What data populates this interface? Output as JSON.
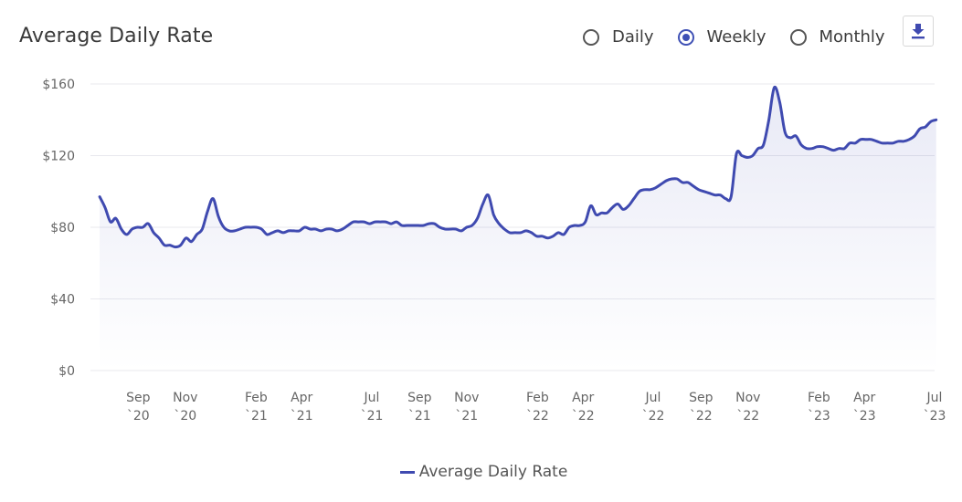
{
  "header": {
    "title": "Average Daily Rate",
    "options": [
      {
        "label": "Daily",
        "selected": false
      },
      {
        "label": "Weekly",
        "selected": true
      },
      {
        "label": "Monthly",
        "selected": false
      }
    ],
    "download_icon": "download-icon"
  },
  "colors": {
    "line": "#3f4ab0",
    "grid": "#e8e8ee",
    "axis_text": "#666666"
  },
  "chart_data": {
    "type": "area",
    "title": "Average Daily Rate",
    "ylabel": "",
    "xlabel": "",
    "ylim": [
      0,
      160
    ],
    "yticks": [
      "$0",
      "$40",
      "$80",
      "$120",
      "$160"
    ],
    "yvalues": [
      0,
      40,
      80,
      120,
      160
    ],
    "x_start": "2020-07",
    "x_end": "2023-07",
    "xticks": [
      {
        "date": "2020-09",
        "line1": "Sep",
        "line2": "`20"
      },
      {
        "date": "2020-11",
        "line1": "Nov",
        "line2": "`20"
      },
      {
        "date": "2021-02",
        "line1": "Feb",
        "line2": "`21"
      },
      {
        "date": "2021-04",
        "line1": "Apr",
        "line2": "`21"
      },
      {
        "date": "2021-07",
        "line1": "Jul",
        "line2": "`21"
      },
      {
        "date": "2021-09",
        "line1": "Sep",
        "line2": "`21"
      },
      {
        "date": "2021-11",
        "line1": "Nov",
        "line2": "`21"
      },
      {
        "date": "2022-02",
        "line1": "Feb",
        "line2": "`22"
      },
      {
        "date": "2022-04",
        "line1": "Apr",
        "line2": "`22"
      },
      {
        "date": "2022-07",
        "line1": "Jul",
        "line2": "`22"
      },
      {
        "date": "2022-09",
        "line1": "Sep",
        "line2": "`22"
      },
      {
        "date": "2022-11",
        "line1": "Nov",
        "line2": "`22"
      },
      {
        "date": "2023-02",
        "line1": "Feb",
        "line2": "`23"
      },
      {
        "date": "2023-04",
        "line1": "Apr",
        "line2": "`23"
      },
      {
        "date": "2023-07",
        "line1": "Jul",
        "line2": "`23"
      }
    ],
    "series": [
      {
        "name": "Average Daily Rate",
        "points": [
          [
            "2020-07-13",
            97
          ],
          [
            "2020-07-20",
            91
          ],
          [
            "2020-07-27",
            83
          ],
          [
            "2020-08-03",
            85
          ],
          [
            "2020-08-10",
            79
          ],
          [
            "2020-08-17",
            76
          ],
          [
            "2020-08-24",
            79
          ],
          [
            "2020-08-31",
            80
          ],
          [
            "2020-09-07",
            80
          ],
          [
            "2020-09-14",
            82
          ],
          [
            "2020-09-21",
            77
          ],
          [
            "2020-09-28",
            74
          ],
          [
            "2020-10-05",
            70
          ],
          [
            "2020-10-12",
            70
          ],
          [
            "2020-10-19",
            69
          ],
          [
            "2020-10-26",
            70
          ],
          [
            "2020-11-02",
            74
          ],
          [
            "2020-11-09",
            72
          ],
          [
            "2020-11-16",
            76
          ],
          [
            "2020-11-23",
            79
          ],
          [
            "2020-11-30",
            89
          ],
          [
            "2020-12-07",
            96
          ],
          [
            "2020-12-14",
            86
          ],
          [
            "2020-12-21",
            80
          ],
          [
            "2020-12-28",
            78
          ],
          [
            "2021-01-04",
            78
          ],
          [
            "2021-01-11",
            79
          ],
          [
            "2021-01-18",
            80
          ],
          [
            "2021-01-25",
            80
          ],
          [
            "2021-02-01",
            80
          ],
          [
            "2021-02-08",
            79
          ],
          [
            "2021-02-15",
            76
          ],
          [
            "2021-02-22",
            77
          ],
          [
            "2021-03-01",
            78
          ],
          [
            "2021-03-08",
            77
          ],
          [
            "2021-03-15",
            78
          ],
          [
            "2021-03-22",
            78
          ],
          [
            "2021-03-29",
            78
          ],
          [
            "2021-04-05",
            80
          ],
          [
            "2021-04-12",
            79
          ],
          [
            "2021-04-19",
            79
          ],
          [
            "2021-04-26",
            78
          ],
          [
            "2021-05-03",
            79
          ],
          [
            "2021-05-10",
            79
          ],
          [
            "2021-05-17",
            78
          ],
          [
            "2021-05-24",
            79
          ],
          [
            "2021-05-31",
            81
          ],
          [
            "2021-06-07",
            83
          ],
          [
            "2021-06-14",
            83
          ],
          [
            "2021-06-21",
            83
          ],
          [
            "2021-06-28",
            82
          ],
          [
            "2021-07-05",
            83
          ],
          [
            "2021-07-12",
            83
          ],
          [
            "2021-07-19",
            83
          ],
          [
            "2021-07-26",
            82
          ],
          [
            "2021-08-02",
            83
          ],
          [
            "2021-08-09",
            81
          ],
          [
            "2021-08-16",
            81
          ],
          [
            "2021-08-23",
            81
          ],
          [
            "2021-08-30",
            81
          ],
          [
            "2021-09-06",
            81
          ],
          [
            "2021-09-13",
            82
          ],
          [
            "2021-09-20",
            82
          ],
          [
            "2021-09-27",
            80
          ],
          [
            "2021-10-04",
            79
          ],
          [
            "2021-10-11",
            79
          ],
          [
            "2021-10-18",
            79
          ],
          [
            "2021-10-25",
            78
          ],
          [
            "2021-11-01",
            80
          ],
          [
            "2021-11-08",
            81
          ],
          [
            "2021-11-15",
            85
          ],
          [
            "2021-11-22",
            93
          ],
          [
            "2021-11-29",
            98
          ],
          [
            "2021-12-06",
            87
          ],
          [
            "2021-12-13",
            82
          ],
          [
            "2021-12-20",
            79
          ],
          [
            "2021-12-27",
            77
          ],
          [
            "2022-01-03",
            77
          ],
          [
            "2022-01-10",
            77
          ],
          [
            "2022-01-17",
            78
          ],
          [
            "2022-01-24",
            77
          ],
          [
            "2022-01-31",
            75
          ],
          [
            "2022-02-07",
            75
          ],
          [
            "2022-02-14",
            74
          ],
          [
            "2022-02-21",
            75
          ],
          [
            "2022-02-28",
            77
          ],
          [
            "2022-03-07",
            76
          ],
          [
            "2022-03-14",
            80
          ],
          [
            "2022-03-21",
            81
          ],
          [
            "2022-03-28",
            81
          ],
          [
            "2022-04-04",
            83
          ],
          [
            "2022-04-11",
            92
          ],
          [
            "2022-04-18",
            87
          ],
          [
            "2022-04-25",
            88
          ],
          [
            "2022-05-02",
            88
          ],
          [
            "2022-05-09",
            91
          ],
          [
            "2022-05-16",
            93
          ],
          [
            "2022-05-23",
            90
          ],
          [
            "2022-05-30",
            92
          ],
          [
            "2022-06-06",
            96
          ],
          [
            "2022-06-13",
            100
          ],
          [
            "2022-06-20",
            101
          ],
          [
            "2022-06-27",
            101
          ],
          [
            "2022-07-04",
            102
          ],
          [
            "2022-07-11",
            104
          ],
          [
            "2022-07-18",
            106
          ],
          [
            "2022-07-25",
            107
          ],
          [
            "2022-08-01",
            107
          ],
          [
            "2022-08-08",
            105
          ],
          [
            "2022-08-15",
            105
          ],
          [
            "2022-08-22",
            103
          ],
          [
            "2022-08-29",
            101
          ],
          [
            "2022-09-05",
            100
          ],
          [
            "2022-09-12",
            99
          ],
          [
            "2022-09-19",
            98
          ],
          [
            "2022-09-26",
            98
          ],
          [
            "2022-10-03",
            96
          ],
          [
            "2022-10-10",
            97
          ],
          [
            "2022-10-17",
            121
          ],
          [
            "2022-10-24",
            120
          ],
          [
            "2022-10-31",
            119
          ],
          [
            "2022-11-07",
            120
          ],
          [
            "2022-11-14",
            124
          ],
          [
            "2022-11-21",
            126
          ],
          [
            "2022-11-28",
            140
          ],
          [
            "2022-12-05",
            158
          ],
          [
            "2022-12-12",
            150
          ],
          [
            "2022-12-19",
            133
          ],
          [
            "2022-12-26",
            130
          ],
          [
            "2023-01-02",
            131
          ],
          [
            "2023-01-09",
            126
          ],
          [
            "2023-01-16",
            124
          ],
          [
            "2023-01-23",
            124
          ],
          [
            "2023-01-30",
            125
          ],
          [
            "2023-02-06",
            125
          ],
          [
            "2023-02-13",
            124
          ],
          [
            "2023-02-20",
            123
          ],
          [
            "2023-02-27",
            124
          ],
          [
            "2023-03-06",
            124
          ],
          [
            "2023-03-13",
            127
          ],
          [
            "2023-03-20",
            127
          ],
          [
            "2023-03-27",
            129
          ],
          [
            "2023-04-03",
            129
          ],
          [
            "2023-04-10",
            129
          ],
          [
            "2023-04-17",
            128
          ],
          [
            "2023-04-24",
            127
          ],
          [
            "2023-05-01",
            127
          ],
          [
            "2023-05-08",
            127
          ],
          [
            "2023-05-15",
            128
          ],
          [
            "2023-05-22",
            128
          ],
          [
            "2023-05-29",
            129
          ],
          [
            "2023-06-05",
            131
          ],
          [
            "2023-06-12",
            135
          ],
          [
            "2023-06-19",
            136
          ],
          [
            "2023-06-26",
            139
          ],
          [
            "2023-07-03",
            140
          ]
        ]
      }
    ],
    "grid": true,
    "legend_position": "bottom-center"
  },
  "legend": {
    "label": "Average Daily Rate"
  }
}
